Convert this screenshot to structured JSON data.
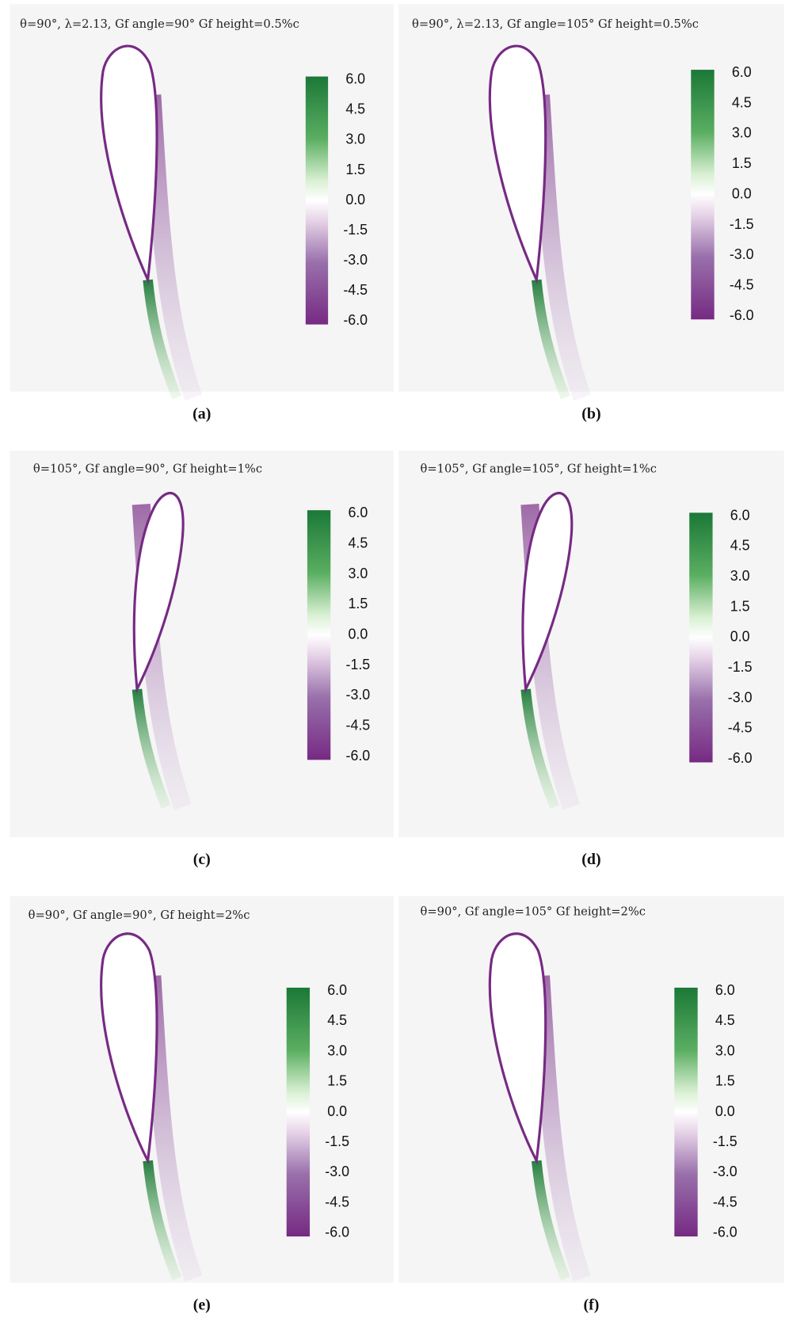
{
  "panels": [
    {
      "title": "θ=90°, λ=2.13, Gf angle=90° Gf height=0.5%c",
      "label": "(a)",
      "colorbar_ticks": [
        "6.0",
        "4.5",
        "3.0",
        "1.5",
        "0.0",
        "-1.5",
        "-3.0",
        "-4.5",
        "-6.0"
      ]
    },
    {
      "title": "θ=90°, λ=2.13, Gf angle=105° Gf height=0.5%c",
      "label": "(b)",
      "colorbar_ticks": [
        "6.0",
        "4.5",
        "3.0",
        "1.5",
        "0.0",
        "-1.5",
        "-3.0",
        "-4.5",
        "-6.0"
      ]
    },
    {
      "title": "θ=105°, Gf angle=90°, Gf height=1%c",
      "label": "(c)",
      "colorbar_ticks": [
        "6.0",
        "4.5",
        "3.0",
        "1.5",
        "0.0",
        "-1.5",
        "-3.0",
        "-4.5",
        "-6.0"
      ]
    },
    {
      "title": "θ=105°, Gf angle=105°, Gf height=1%c",
      "label": "(d)",
      "colorbar_ticks": [
        "6.0",
        "4.5",
        "3.0",
        "1.5",
        "0.0",
        "-1.5",
        "-3.0",
        "-4.5",
        "-6.0"
      ]
    },
    {
      "title": "θ=90°, Gf angle=90°, Gf height=2%c",
      "label": "(e)",
      "colorbar_ticks": [
        "6.0",
        "4.5",
        "3.0",
        "1.5",
        "0.0",
        "-1.5",
        "-3.0",
        "-4.5",
        "-6.0"
      ]
    },
    {
      "title": "θ=90°, Gf angle=105° Gf height=2%c",
      "label": "(f)",
      "colorbar_ticks": [
        "6.0",
        "4.5",
        "3.0",
        "1.5",
        "0.0",
        "-1.5",
        "-3.0",
        "-4.5",
        "-6.0"
      ]
    }
  ]
}
